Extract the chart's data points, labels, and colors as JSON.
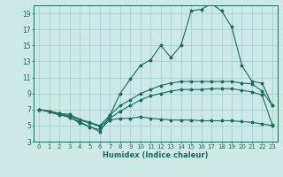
{
  "xlabel": "Humidex (Indice chaleur)",
  "bg_color": "#cce9e5",
  "grid_color": "#9ececa",
  "line_color": "#1a6b60",
  "ylim": [
    3,
    20
  ],
  "yticks": [
    3,
    5,
    7,
    9,
    11,
    13,
    15,
    17,
    19
  ],
  "xticks": [
    0,
    1,
    2,
    3,
    4,
    5,
    6,
    7,
    8,
    9,
    10,
    11,
    12,
    13,
    14,
    15,
    16,
    17,
    18,
    19,
    20,
    21,
    22,
    23
  ],
  "line1_y": [
    7.0,
    6.7,
    6.3,
    6.1,
    5.3,
    4.9,
    4.2,
    6.3,
    9.0,
    10.8,
    12.5,
    13.2,
    15.0,
    13.5,
    15.0,
    19.3,
    19.5,
    20.2,
    19.3,
    17.3,
    12.5,
    10.5,
    10.3,
    7.5
  ],
  "line2_y": [
    7.0,
    6.8,
    6.5,
    6.4,
    5.8,
    5.4,
    5.0,
    6.3,
    7.5,
    8.2,
    9.0,
    9.5,
    10.0,
    10.3,
    10.5,
    10.5,
    10.5,
    10.5,
    10.5,
    10.5,
    10.3,
    10.2,
    9.3,
    7.5
  ],
  "line3_y": [
    7.0,
    6.8,
    6.5,
    6.2,
    5.7,
    5.3,
    4.9,
    5.9,
    6.8,
    7.5,
    8.2,
    8.7,
    9.0,
    9.3,
    9.5,
    9.5,
    9.5,
    9.6,
    9.6,
    9.6,
    9.4,
    9.2,
    8.8,
    5.1
  ],
  "line4_y": [
    7.0,
    6.8,
    6.5,
    6.0,
    5.5,
    4.8,
    4.5,
    5.7,
    5.9,
    5.9,
    6.1,
    5.9,
    5.8,
    5.7,
    5.7,
    5.7,
    5.6,
    5.6,
    5.6,
    5.6,
    5.5,
    5.4,
    5.2,
    5.0
  ]
}
